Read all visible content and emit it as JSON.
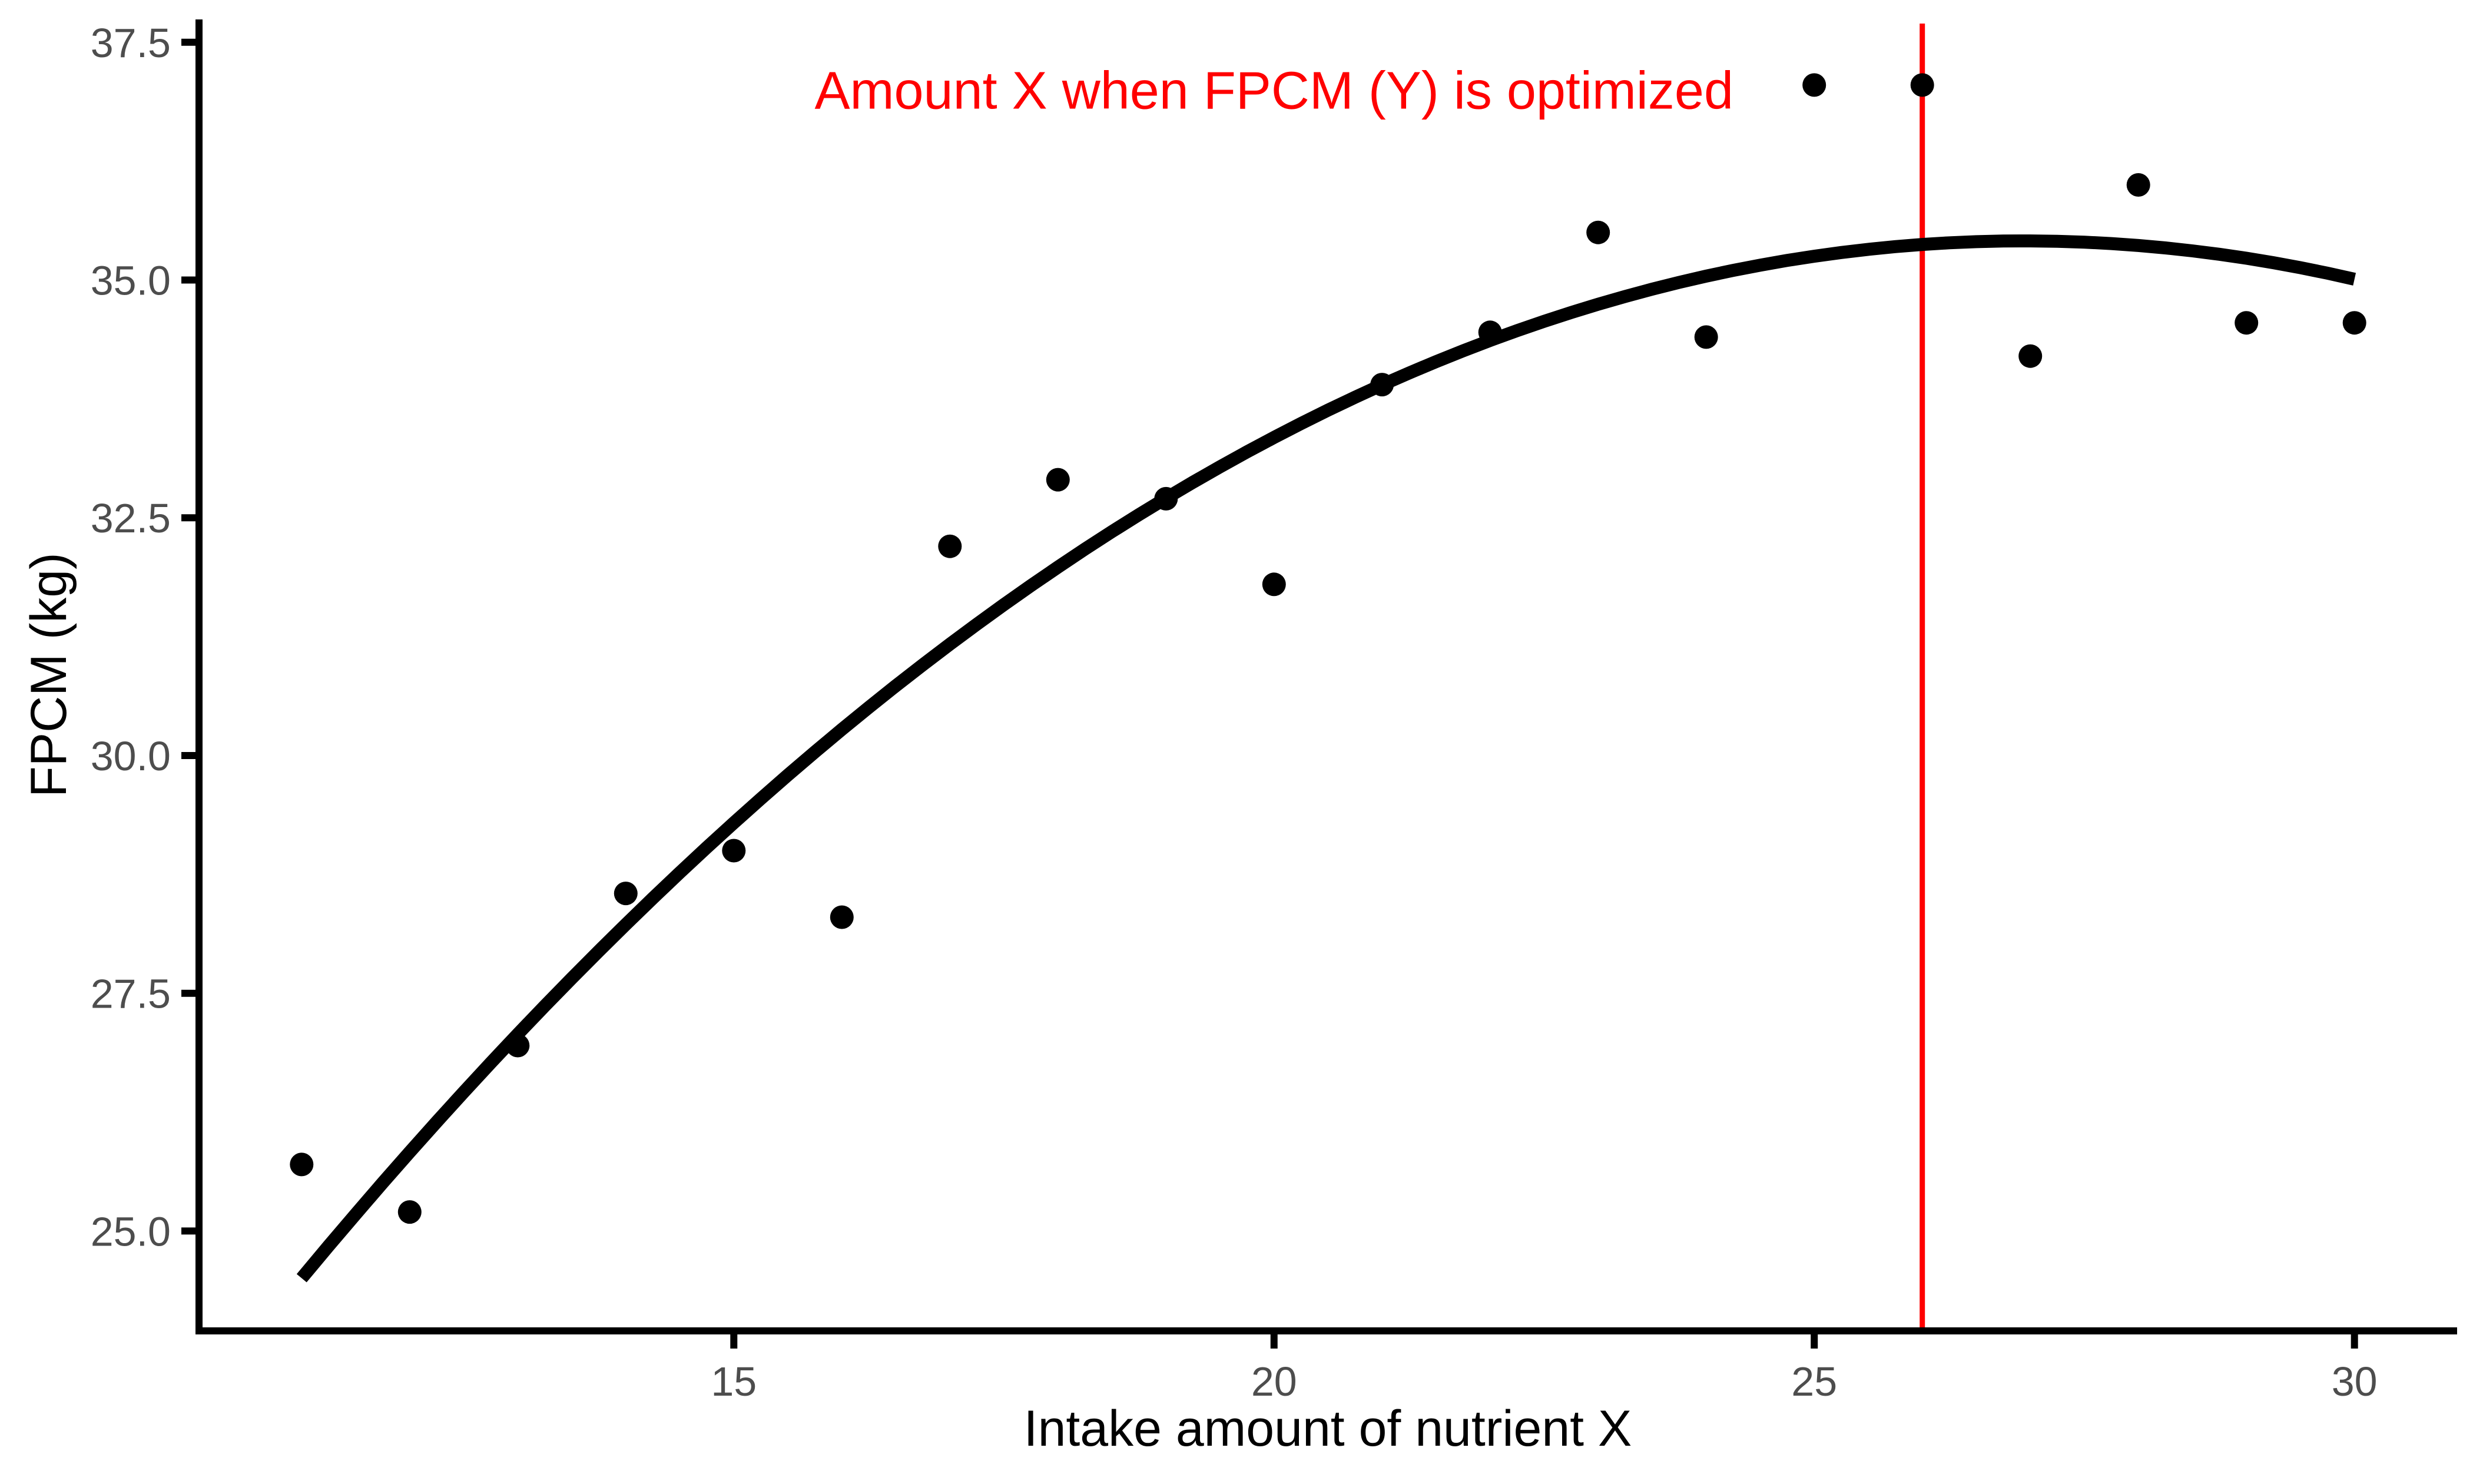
{
  "chart_data": {
    "type": "scatter",
    "title": "",
    "xlabel": "Intake amount of nutrient X",
    "ylabel": "FPCM (kg)",
    "xlim": [
      10.05,
      30.95
    ],
    "ylim": [
      23.95,
      37.74
    ],
    "grid": false,
    "legend": false,
    "background": "#FFFFFF",
    "axis_color": "#000000",
    "tick_label_color": "#4D4D4D",
    "x_ticks": [
      {
        "value": 15,
        "label": "15"
      },
      {
        "value": 20,
        "label": "20"
      },
      {
        "value": 25,
        "label": "25"
      },
      {
        "value": 30,
        "label": "30"
      }
    ],
    "y_ticks": [
      {
        "value": 25.0,
        "label": "25.0"
      },
      {
        "value": 27.5,
        "label": "27.5"
      },
      {
        "value": 30.0,
        "label": "30.0"
      },
      {
        "value": 32.5,
        "label": "32.5"
      },
      {
        "value": 35.0,
        "label": "35.0"
      },
      {
        "value": 37.5,
        "label": "37.5"
      }
    ],
    "point_color": "#000000",
    "point_radius_px": 20,
    "points": [
      {
        "x": 11,
        "y": 25.7
      },
      {
        "x": 12,
        "y": 25.2
      },
      {
        "x": 13,
        "y": 26.95
      },
      {
        "x": 14,
        "y": 28.55
      },
      {
        "x": 15,
        "y": 29.0
      },
      {
        "x": 16,
        "y": 28.3
      },
      {
        "x": 17,
        "y": 32.2
      },
      {
        "x": 18,
        "y": 32.9
      },
      {
        "x": 19,
        "y": 32.7
      },
      {
        "x": 20,
        "y": 31.8
      },
      {
        "x": 21,
        "y": 33.9
      },
      {
        "x": 22,
        "y": 34.45
      },
      {
        "x": 23,
        "y": 35.5
      },
      {
        "x": 24,
        "y": 34.4
      },
      {
        "x": 25,
        "y": 37.05
      },
      {
        "x": 26,
        "y": 37.05
      },
      {
        "x": 27,
        "y": 34.2
      },
      {
        "x": 28,
        "y": 36.0
      },
      {
        "x": 29,
        "y": 34.55
      },
      {
        "x": 30,
        "y": 34.55
      }
    ],
    "fit_curve": {
      "type": "quadratic",
      "coefficients": {
        "a": -0.04294,
        "b": 2.3134,
        "c": 4.2527
      },
      "domain": [
        11,
        30
      ],
      "peak_x": 26.9,
      "peak_y": 35.4,
      "color": "#000000",
      "stroke_width_px": 22
    },
    "vline": {
      "x": 26,
      "color": "#FF0000",
      "stroke_width_px": 9
    },
    "annotation": {
      "text": "Amount X when FPCM (Y) is optimized",
      "color": "#FF0000",
      "x": 20,
      "y": 37.0
    }
  }
}
